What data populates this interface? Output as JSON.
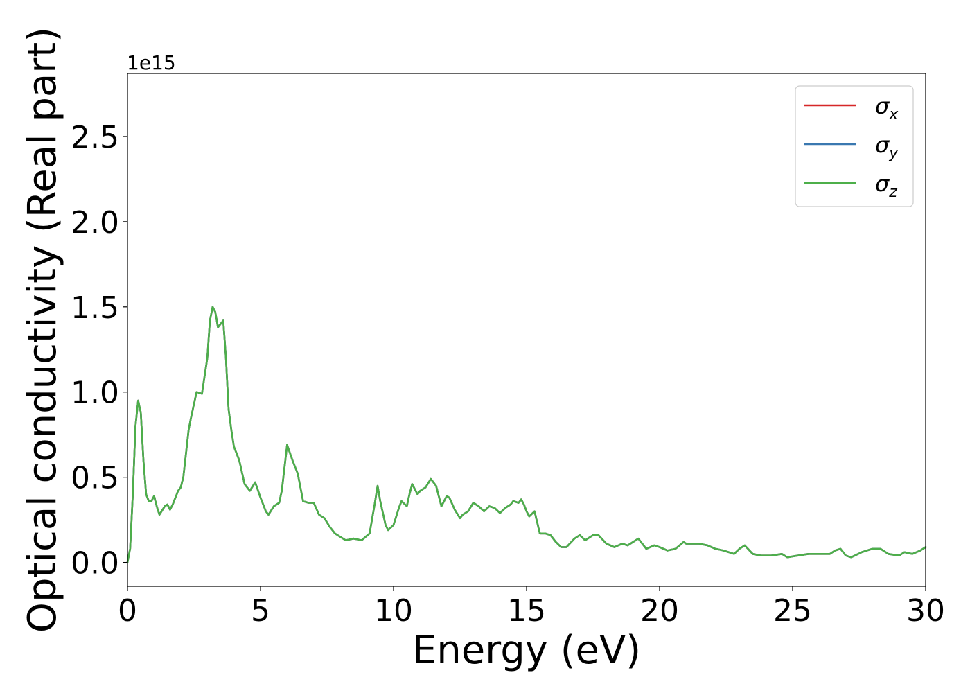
{
  "chart_data": {
    "type": "line",
    "xlabel": "Energy (eV)",
    "ylabel": "Optical conductivity (Real part)",
    "y_offset_label": "1e15",
    "xlim": [
      0,
      30
    ],
    "ylim": [
      -0.14,
      2.87
    ],
    "x_ticks": [
      0,
      5,
      10,
      15,
      20,
      25,
      30
    ],
    "y_ticks": [
      0.0,
      0.5,
      1.0,
      1.5,
      2.0,
      2.5
    ],
    "y_tick_labels": [
      "0.0",
      "0.5",
      "1.0",
      "1.5",
      "2.0",
      "2.5"
    ],
    "x_tick_labels": [
      "0",
      "5",
      "10",
      "15",
      "20",
      "25",
      "30"
    ],
    "grid": false,
    "legend_position": "top-right",
    "x": [
      0,
      0.1,
      0.2,
      0.3,
      0.4,
      0.5,
      0.6,
      0.7,
      0.8,
      0.9,
      1.0,
      1.1,
      1.2,
      1.4,
      1.5,
      1.6,
      1.7,
      1.9,
      2.0,
      2.1,
      2.3,
      2.4,
      2.5,
      2.6,
      2.8,
      3.0,
      3.1,
      3.2,
      3.3,
      3.4,
      3.5,
      3.6,
      3.7,
      3.8,
      3.9,
      4.0,
      4.2,
      4.4,
      4.6,
      4.8,
      5.0,
      5.2,
      5.3,
      5.5,
      5.7,
      5.8,
      6.0,
      6.2,
      6.4,
      6.6,
      6.8,
      7.0,
      7.2,
      7.4,
      7.6,
      7.8,
      8.0,
      8.2,
      8.5,
      8.8,
      9.1,
      9.3,
      9.4,
      9.5,
      9.7,
      9.8,
      10.0,
      10.2,
      10.3,
      10.5,
      10.6,
      10.7,
      10.9,
      11.0,
      11.2,
      11.4,
      11.6,
      11.8,
      12.0,
      12.1,
      12.3,
      12.5,
      12.6,
      12.8,
      13.0,
      13.2,
      13.4,
      13.6,
      13.8,
      14.0,
      14.2,
      14.4,
      14.5,
      14.7,
      14.8,
      14.9,
      15.0,
      15.1,
      15.3,
      15.5,
      15.7,
      15.9,
      16.1,
      16.3,
      16.5,
      16.8,
      17.0,
      17.2,
      17.5,
      17.7,
      18.0,
      18.3,
      18.6,
      18.8,
      19.0,
      19.2,
      19.5,
      19.8,
      20.0,
      20.3,
      20.6,
      20.9,
      21.0,
      21.2,
      21.5,
      21.8,
      22.1,
      22.4,
      22.8,
      23.0,
      23.2,
      23.5,
      23.8,
      24.2,
      24.6,
      24.8,
      25.2,
      25.6,
      26.0,
      26.4,
      26.6,
      26.8,
      27.0,
      27.2,
      27.6,
      28.0,
      28.3,
      28.6,
      29.0,
      29.2,
      29.5,
      29.8,
      30.0
    ],
    "series": [
      {
        "name": "σx",
        "color": "#d62728",
        "values": [
          0.0,
          0.08,
          0.4,
          0.8,
          0.95,
          0.88,
          0.6,
          0.4,
          0.36,
          0.36,
          0.39,
          0.33,
          0.28,
          0.33,
          0.34,
          0.31,
          0.34,
          0.42,
          0.44,
          0.5,
          0.78,
          0.86,
          0.93,
          1.0,
          0.99,
          1.2,
          1.42,
          1.5,
          1.47,
          1.38,
          1.4,
          1.42,
          1.2,
          0.9,
          0.78,
          0.68,
          0.6,
          0.46,
          0.42,
          0.47,
          0.38,
          0.3,
          0.28,
          0.33,
          0.35,
          0.42,
          0.69,
          0.6,
          0.52,
          0.36,
          0.35,
          0.35,
          0.28,
          0.26,
          0.21,
          0.17,
          0.15,
          0.13,
          0.14,
          0.13,
          0.17,
          0.35,
          0.45,
          0.36,
          0.22,
          0.19,
          0.22,
          0.32,
          0.36,
          0.33,
          0.4,
          0.46,
          0.4,
          0.42,
          0.44,
          0.49,
          0.45,
          0.33,
          0.39,
          0.38,
          0.31,
          0.26,
          0.28,
          0.3,
          0.35,
          0.33,
          0.3,
          0.33,
          0.32,
          0.29,
          0.32,
          0.34,
          0.36,
          0.35,
          0.37,
          0.34,
          0.3,
          0.27,
          0.3,
          0.17,
          0.17,
          0.16,
          0.12,
          0.09,
          0.09,
          0.14,
          0.16,
          0.13,
          0.16,
          0.16,
          0.11,
          0.09,
          0.11,
          0.1,
          0.12,
          0.14,
          0.08,
          0.1,
          0.09,
          0.07,
          0.08,
          0.12,
          0.11,
          0.11,
          0.11,
          0.1,
          0.08,
          0.07,
          0.05,
          0.08,
          0.1,
          0.05,
          0.04,
          0.04,
          0.05,
          0.03,
          0.04,
          0.05,
          0.05,
          0.05,
          0.07,
          0.08,
          0.04,
          0.03,
          0.06,
          0.08,
          0.08,
          0.05,
          0.04,
          0.06,
          0.05,
          0.07,
          0.09
        ]
      },
      {
        "name": "σy",
        "color": "#3a78b0",
        "values": [
          0.0,
          0.08,
          0.4,
          0.8,
          0.95,
          0.88,
          0.6,
          0.4,
          0.36,
          0.36,
          0.39,
          0.33,
          0.28,
          0.33,
          0.34,
          0.31,
          0.34,
          0.42,
          0.44,
          0.5,
          0.78,
          0.86,
          0.93,
          1.0,
          0.99,
          1.2,
          1.42,
          1.5,
          1.47,
          1.38,
          1.4,
          1.42,
          1.2,
          0.9,
          0.78,
          0.68,
          0.6,
          0.46,
          0.42,
          0.47,
          0.38,
          0.3,
          0.28,
          0.33,
          0.35,
          0.42,
          0.69,
          0.6,
          0.52,
          0.36,
          0.35,
          0.35,
          0.28,
          0.26,
          0.21,
          0.17,
          0.15,
          0.13,
          0.14,
          0.13,
          0.17,
          0.35,
          0.45,
          0.36,
          0.22,
          0.19,
          0.22,
          0.32,
          0.36,
          0.33,
          0.4,
          0.46,
          0.4,
          0.42,
          0.44,
          0.49,
          0.45,
          0.33,
          0.39,
          0.38,
          0.31,
          0.26,
          0.28,
          0.3,
          0.35,
          0.33,
          0.3,
          0.33,
          0.32,
          0.29,
          0.32,
          0.34,
          0.36,
          0.35,
          0.37,
          0.34,
          0.3,
          0.27,
          0.3,
          0.17,
          0.17,
          0.16,
          0.12,
          0.09,
          0.09,
          0.14,
          0.16,
          0.13,
          0.16,
          0.16,
          0.11,
          0.09,
          0.11,
          0.1,
          0.12,
          0.14,
          0.08,
          0.1,
          0.09,
          0.07,
          0.08,
          0.12,
          0.11,
          0.11,
          0.11,
          0.1,
          0.08,
          0.07,
          0.05,
          0.08,
          0.1,
          0.05,
          0.04,
          0.04,
          0.05,
          0.03,
          0.04,
          0.05,
          0.05,
          0.05,
          0.07,
          0.08,
          0.04,
          0.03,
          0.06,
          0.08,
          0.08,
          0.05,
          0.04,
          0.06,
          0.05,
          0.07,
          0.09
        ]
      },
      {
        "name": "σz",
        "color": "#4daf4a",
        "values": [
          0.0,
          0.08,
          0.4,
          0.8,
          0.95,
          0.88,
          0.6,
          0.4,
          0.36,
          0.36,
          0.39,
          0.33,
          0.28,
          0.33,
          0.34,
          0.31,
          0.34,
          0.42,
          0.44,
          0.5,
          0.78,
          0.86,
          0.93,
          1.0,
          0.99,
          1.2,
          1.42,
          1.5,
          1.47,
          1.38,
          1.4,
          1.42,
          1.2,
          0.9,
          0.78,
          0.68,
          0.6,
          0.46,
          0.42,
          0.47,
          0.38,
          0.3,
          0.28,
          0.33,
          0.35,
          0.42,
          0.69,
          0.6,
          0.52,
          0.36,
          0.35,
          0.35,
          0.28,
          0.26,
          0.21,
          0.17,
          0.15,
          0.13,
          0.14,
          0.13,
          0.17,
          0.35,
          0.45,
          0.36,
          0.22,
          0.19,
          0.22,
          0.32,
          0.36,
          0.33,
          0.4,
          0.46,
          0.4,
          0.42,
          0.44,
          0.49,
          0.45,
          0.33,
          0.39,
          0.38,
          0.31,
          0.26,
          0.28,
          0.3,
          0.35,
          0.33,
          0.3,
          0.33,
          0.32,
          0.29,
          0.32,
          0.34,
          0.36,
          0.35,
          0.37,
          0.34,
          0.3,
          0.27,
          0.3,
          0.17,
          0.17,
          0.16,
          0.12,
          0.09,
          0.09,
          0.14,
          0.16,
          0.13,
          0.16,
          0.16,
          0.11,
          0.09,
          0.11,
          0.1,
          0.12,
          0.14,
          0.08,
          0.1,
          0.09,
          0.07,
          0.08,
          0.12,
          0.11,
          0.11,
          0.11,
          0.1,
          0.08,
          0.07,
          0.05,
          0.08,
          0.1,
          0.05,
          0.04,
          0.04,
          0.05,
          0.03,
          0.04,
          0.05,
          0.05,
          0.05,
          0.07,
          0.08,
          0.04,
          0.03,
          0.06,
          0.08,
          0.08,
          0.05,
          0.04,
          0.06,
          0.05,
          0.07,
          0.09
        ]
      }
    ],
    "legend": [
      {
        "symbol": "σ",
        "sub": "x",
        "color": "#d62728"
      },
      {
        "symbol": "σ",
        "sub": "y",
        "color": "#3a78b0"
      },
      {
        "symbol": "σ",
        "sub": "z",
        "color": "#4daf4a"
      }
    ]
  }
}
